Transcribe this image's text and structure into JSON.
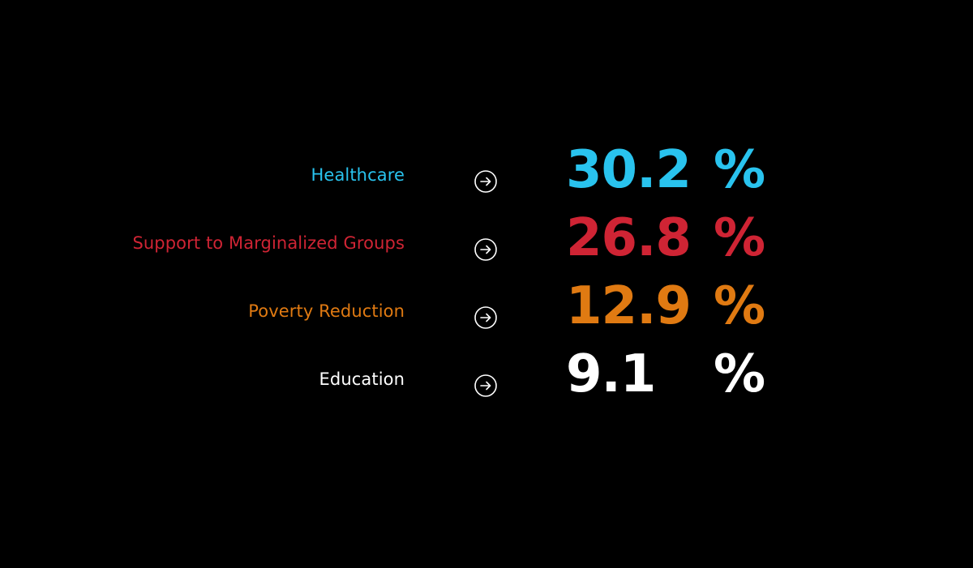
{
  "rows": [
    {
      "label": "Healthcare",
      "value": "30.2",
      "unit": "%",
      "color": "#29c3ee",
      "icon": "arrow-right-circle-icon"
    },
    {
      "label": "Support to Marginalized Groups",
      "value": "26.8",
      "unit": "%",
      "color": "#cf2434",
      "icon": "arrow-right-circle-icon"
    },
    {
      "label": "Poverty Reduction",
      "value": "12.9",
      "unit": "%",
      "color": "#e07a12",
      "icon": "arrow-right-circle-icon"
    },
    {
      "label": "Education",
      "value": "9.1",
      "unit": "%",
      "color": "#ffffff",
      "icon": "arrow-right-circle-icon"
    }
  ]
}
